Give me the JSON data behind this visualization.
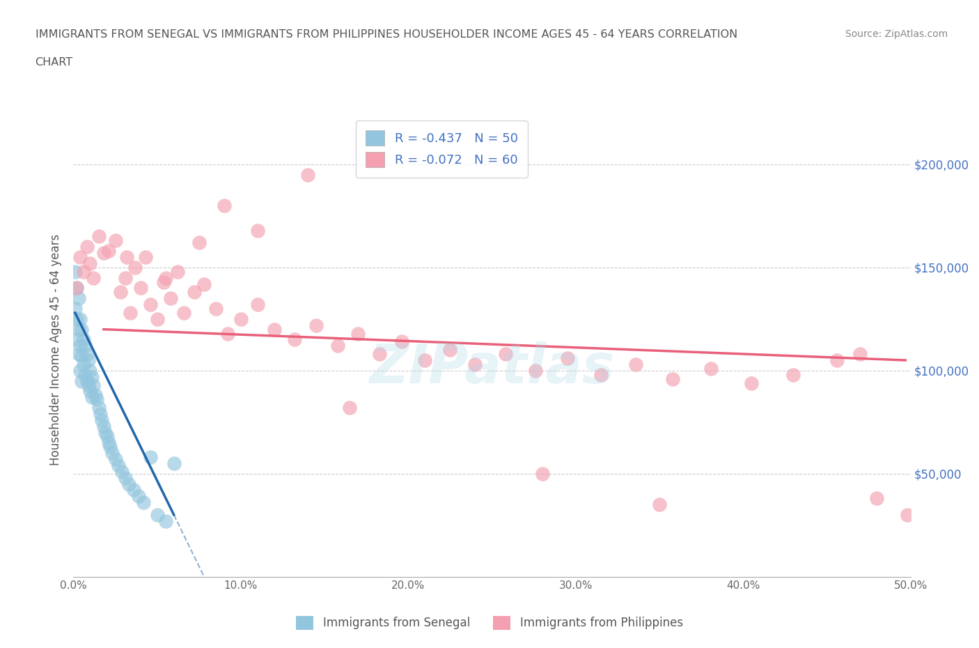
{
  "title_line1": "IMMIGRANTS FROM SENEGAL VS IMMIGRANTS FROM PHILIPPINES HOUSEHOLDER INCOME AGES 45 - 64 YEARS CORRELATION",
  "title_line2": "CHART",
  "source_text": "Source: ZipAtlas.com",
  "ylabel": "Householder Income Ages 45 - 64 years",
  "xlim": [
    0.0,
    0.5
  ],
  "ylim": [
    0,
    220000
  ],
  "xtick_vals": [
    0.0,
    0.1,
    0.2,
    0.3,
    0.4,
    0.5
  ],
  "xtick_labels": [
    "0.0%",
    "10.0%",
    "20.0%",
    "30.0%",
    "40.0%",
    "50.0%"
  ],
  "ytick_values": [
    50000,
    100000,
    150000,
    200000
  ],
  "ytick_labels": [
    "$50,000",
    "$100,000",
    "$150,000",
    "$200,000"
  ],
  "senegal_color": "#92c5de",
  "philippines_color": "#f4a0b0",
  "senegal_line_color": "#2166ac",
  "philippines_line_color": "#e8607a",
  "senegal_R": -0.437,
  "senegal_N": 50,
  "philippines_R": -0.072,
  "philippines_N": 60,
  "background_color": "#ffffff",
  "grid_color": "#cccccc",
  "senegal_x": [
    0.001,
    0.001,
    0.002,
    0.002,
    0.002,
    0.003,
    0.003,
    0.003,
    0.004,
    0.004,
    0.004,
    0.005,
    0.005,
    0.005,
    0.006,
    0.006,
    0.007,
    0.007,
    0.008,
    0.008,
    0.009,
    0.009,
    0.01,
    0.01,
    0.011,
    0.011,
    0.012,
    0.013,
    0.014,
    0.015,
    0.016,
    0.017,
    0.018,
    0.019,
    0.02,
    0.021,
    0.022,
    0.023,
    0.025,
    0.027,
    0.029,
    0.031,
    0.033,
    0.036,
    0.039,
    0.042,
    0.046,
    0.05,
    0.055,
    0.06
  ],
  "senegal_y": [
    148000,
    130000,
    140000,
    125000,
    115000,
    135000,
    120000,
    108000,
    125000,
    112000,
    100000,
    120000,
    107000,
    95000,
    115000,
    103000,
    112000,
    98000,
    108000,
    95000,
    105000,
    93000,
    100000,
    90000,
    97000,
    87000,
    93000,
    88000,
    86000,
    82000,
    79000,
    76000,
    73000,
    70000,
    68000,
    65000,
    63000,
    60000,
    57000,
    54000,
    51000,
    48000,
    45000,
    42000,
    39000,
    36000,
    58000,
    30000,
    27000,
    55000
  ],
  "philippines_x": [
    0.002,
    0.004,
    0.006,
    0.008,
    0.01,
    0.012,
    0.015,
    0.018,
    0.021,
    0.025,
    0.028,
    0.031,
    0.034,
    0.037,
    0.04,
    0.043,
    0.046,
    0.05,
    0.054,
    0.058,
    0.062,
    0.066,
    0.072,
    0.078,
    0.085,
    0.092,
    0.1,
    0.11,
    0.12,
    0.132,
    0.145,
    0.158,
    0.17,
    0.183,
    0.196,
    0.21,
    0.225,
    0.24,
    0.258,
    0.276,
    0.295,
    0.315,
    0.336,
    0.358,
    0.381,
    0.405,
    0.43,
    0.456,
    0.48,
    0.498,
    0.032,
    0.055,
    0.075,
    0.09,
    0.11,
    0.14,
    0.165,
    0.28,
    0.35,
    0.47
  ],
  "philippines_y": [
    140000,
    155000,
    148000,
    160000,
    152000,
    145000,
    165000,
    157000,
    158000,
    163000,
    138000,
    145000,
    128000,
    150000,
    140000,
    155000,
    132000,
    125000,
    143000,
    135000,
    148000,
    128000,
    138000,
    142000,
    130000,
    118000,
    125000,
    132000,
    120000,
    115000,
    122000,
    112000,
    118000,
    108000,
    114000,
    105000,
    110000,
    103000,
    108000,
    100000,
    106000,
    98000,
    103000,
    96000,
    101000,
    94000,
    98000,
    105000,
    38000,
    30000,
    155000,
    145000,
    162000,
    180000,
    168000,
    195000,
    82000,
    50000,
    35000,
    108000
  ]
}
